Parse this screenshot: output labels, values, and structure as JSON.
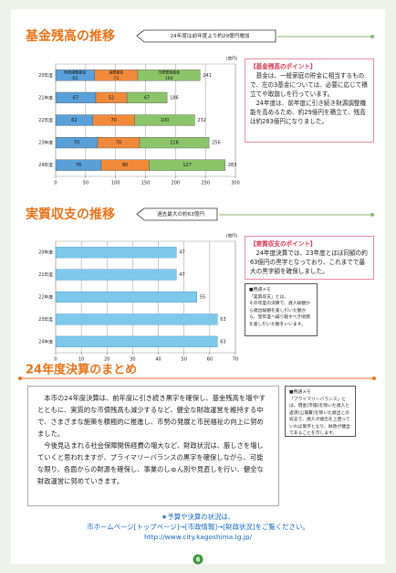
{
  "chart_data": [
    {
      "type": "bar",
      "orientation": "horizontal",
      "stacked": true,
      "title": "基金残高の推移",
      "annotation": "24年度は前年度より約29億円増加",
      "unit": "(億円)",
      "categories": [
        "20年度",
        "21年度",
        "22年度",
        "23年度",
        "24年度"
      ],
      "series": [
        {
          "name": "財政調整基金",
          "color": "#5aa0d8",
          "values": [
            65,
            67,
            62,
            70,
            76
          ]
        },
        {
          "name": "減債基金",
          "color": "#f08a3a",
          "values": [
            72,
            52,
            70,
            70,
            80
          ]
        },
        {
          "name": "市債管理基金",
          "color": "#8cc46a",
          "values": [
            104,
            67,
            100,
            116,
            127
          ]
        }
      ],
      "totals": [
        241,
        186,
        232,
        256,
        283
      ],
      "xlim": [
        0,
        300
      ],
      "xticks": [
        0,
        50,
        100,
        150,
        200,
        250,
        300
      ],
      "grid": true
    },
    {
      "type": "bar",
      "orientation": "horizontal",
      "title": "実質収支の推移",
      "annotation": "過去最大の約63億円",
      "unit": "(億円)",
      "categories": [
        "20年度",
        "21年度",
        "22年度",
        "23年度",
        "24年度"
      ],
      "values": [
        47,
        47,
        55,
        63,
        63
      ],
      "color": "#7ec8ec",
      "xlim": [
        0,
        70
      ],
      "xticks": [
        0,
        10,
        20,
        30,
        40,
        50,
        60,
        70
      ],
      "grid": true
    }
  ],
  "fund_point": {
    "title": "【基金残高のポイント】",
    "paragraphs": [
      "基金は、一般家庭の貯金に相当するもので、左の3基金については、必要に応じて積立てや取崩しを行っています。",
      "24年度は、前年度に引き続き財源調整機能を高めるため、約29億円を積立て、残高は約283億円になりました。"
    ]
  },
  "balance_point": {
    "title": "【実質収支のポイント】",
    "paragraphs": [
      "24年度決算では、23年度とほぼ同額の約63億円の黒字となっており、これまでで最大の黒字額を確保しました。"
    ]
  },
  "balance_memo": {
    "title": "■用語メモ",
    "lines": [
      "「実質収支」とは、",
      "その年度の決算で、歳入総額から歳出総額を差し引いた額から、翌年度へ繰り越すべき財源を差し引いた額をいいます。"
    ]
  },
  "summary": {
    "title": "24年度決算のまとめ",
    "paragraphs": [
      "本市の24年度決算は、前年度に引き続き黒字を確保し、基金残高を増やすとともに、実質的な市債残高も減少するなど、健全な財政運営を維持する中で、さまざまな施策を積極的に推進し、市勢の発展と市民福祉の向上に努めました。",
      "今後見込まれる社会保障関係経費の増大など、財政状況は、厳しさを増していくと思われますが、プライマリーバランスの黒字を確保しながら、可能な限り、各面からの財源を確保し、事業のしゅん別や見直しを行い、健全な財政運営に努めていきます。"
    ],
    "memo": {
      "title": "■用語メモ",
      "lines": [
        "「プライマリーバランス」とは、借金(市債)を除いた歳入と返済(公債費)を除いた歳出との収支で、歳入が歳出を上回っていれば黒字となり、財政が健全であることを示します。"
      ]
    }
  },
  "footer": {
    "note": "★予算や決算の状況は、",
    "guide": "市ホームページ[トップページ]→[市政情報]→[財政状況]をご覧ください。",
    "url": "http://www.city.kagoshima.lg.jp/",
    "page": "6"
  }
}
